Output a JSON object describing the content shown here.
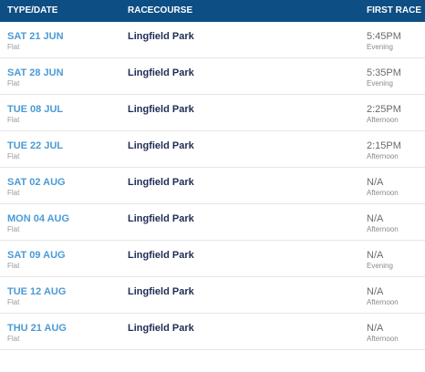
{
  "header": {
    "type_date": "TYPE/DATE",
    "racecourse": "RACECOURSE",
    "first_race": "FIRST RACE"
  },
  "rows": [
    {
      "date": "SAT 21 JUN",
      "type": "Flat",
      "course": "Lingfield Park",
      "time": "5:45PM",
      "session": "Evening"
    },
    {
      "date": "SAT 28 JUN",
      "type": "Flat",
      "course": "Lingfield Park",
      "time": "5:35PM",
      "session": "Evening"
    },
    {
      "date": "TUE 08 JUL",
      "type": "Flat",
      "course": "Lingfield Park",
      "time": "2:25PM",
      "session": "Afternoon"
    },
    {
      "date": "TUE 22 JUL",
      "type": "Flat",
      "course": "Lingfield Park",
      "time": "2:15PM",
      "session": "Afternoon"
    },
    {
      "date": "SAT 02 AUG",
      "type": "Flat",
      "course": "Lingfield Park",
      "time": "N/A",
      "session": "Afternoon"
    },
    {
      "date": "MON 04 AUG",
      "type": "Flat",
      "course": "Lingfield Park",
      "time": "N/A",
      "session": "Afternoon"
    },
    {
      "date": "SAT 09 AUG",
      "type": "Flat",
      "course": "Lingfield Park",
      "time": "N/A",
      "session": "Evening"
    },
    {
      "date": "TUE 12 AUG",
      "type": "Flat",
      "course": "Lingfield Park",
      "time": "N/A",
      "session": "Afternoon"
    },
    {
      "date": "THU 21 AUG",
      "type": "Flat",
      "course": "Lingfield Park",
      "time": "N/A",
      "session": "Afternoon"
    }
  ]
}
